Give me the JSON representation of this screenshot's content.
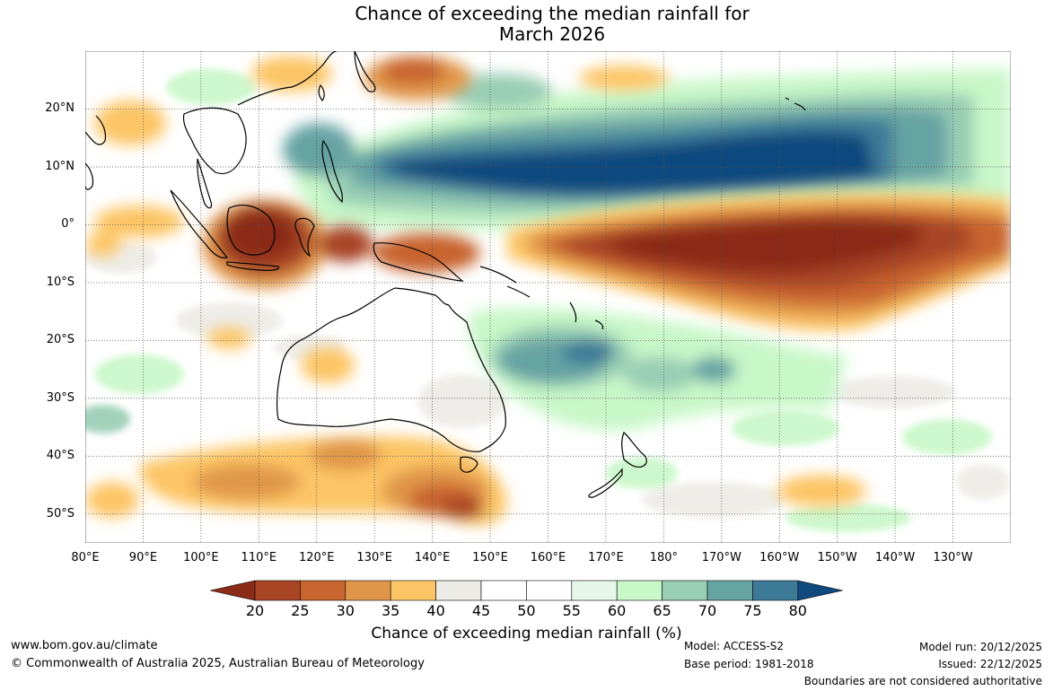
{
  "title": {
    "line1": "Chance of exceeding the median rainfall for",
    "line2": "March 2026"
  },
  "axes": {
    "lon_ticks": [
      "80°E",
      "90°E",
      "100°E",
      "110°E",
      "120°E",
      "130°E",
      "140°E",
      "150°E",
      "160°E",
      "170°E",
      "180°",
      "170°W",
      "160°W",
      "150°W",
      "140°W",
      "130°W"
    ],
    "lat_ticks": [
      "20°N",
      "10°N",
      "0°",
      "10°S",
      "20°S",
      "30°S",
      "40°S",
      "50°S"
    ],
    "lon_range": [
      80,
      240
    ],
    "lat_range": [
      -55,
      30
    ]
  },
  "legend": {
    "label": "Chance of exceeding median rainfall (%)",
    "ticks": [
      "20",
      "25",
      "30",
      "35",
      "40",
      "45",
      "50",
      "55",
      "60",
      "65",
      "70",
      "75",
      "80"
    ],
    "colors": [
      "#8a2c17",
      "#a84525",
      "#c8642e",
      "#e0964a",
      "#fcc565",
      "#ecebe6",
      "#ffffff",
      "#ffffff",
      "#e6f7e9",
      "#c8f7c8",
      "#99cdb4",
      "#66a3a3",
      "#3c7a98",
      "#114a7e"
    ]
  },
  "footer": {
    "website": "www.bom.gov.au/climate",
    "copyright": "© Commonwealth of Australia 2025, Australian Bureau of Meteorology",
    "model": "Model: ACCESS-S2",
    "base_period": "Base period: 1981-2018",
    "model_run": "Model run: 20/12/2025",
    "issued": "Issued: 22/12/2025",
    "disclaimer": "Boundaries are not considered authoritative"
  }
}
